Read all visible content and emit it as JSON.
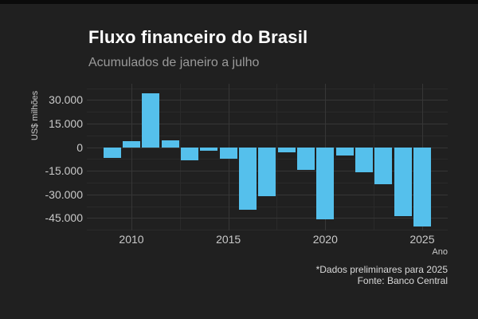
{
  "header": {
    "title": "Fluxo financeiro do Brasil",
    "subtitle": "Acumulados de janeiro a julho"
  },
  "footer": {
    "note": "*Dados preliminares para 2025",
    "source": "Fonte: Banco Central"
  },
  "colors": {
    "background": "#202020",
    "top_border": "#0b0b0b",
    "bar": "#55c0ec",
    "grid_major": "#363636",
    "grid_minor": "#2a2a2a",
    "title_text": "#ffffff",
    "subtitle_text": "#9a9a9a",
    "axis_text": "#c9c9c9",
    "caption_text": "#dadada"
  },
  "chart_data": {
    "type": "bar",
    "title": "Fluxo financeiro do Brasil",
    "subtitle": "Acumulados de janeiro a julho",
    "xlabel": "Ano",
    "ylabel": "US$ milhões",
    "categories": [
      2009,
      2010,
      2011,
      2012,
      2013,
      2014,
      2015,
      2016,
      2017,
      2018,
      2019,
      2020,
      2021,
      2022,
      2023,
      2024,
      2025
    ],
    "values": [
      -7000,
      4000,
      34200,
      4500,
      -8500,
      -2500,
      -7400,
      -39900,
      -31100,
      -3500,
      -14300,
      -45800,
      -5100,
      -15900,
      -23400,
      -43600,
      -50600
    ],
    "bar_color": "#55c0ec",
    "ylim": [
      -52900,
      40300
    ],
    "yticks_major": [
      30000,
      15000,
      0,
      -15000,
      -30000,
      -45000
    ],
    "ytick_labels": [
      "30.000",
      "15.000",
      "0",
      "-15.000",
      "-30.000",
      "-45.000"
    ],
    "yticks_minor": [
      37500,
      22500,
      7500,
      -7500,
      -22500,
      -37500,
      -52500
    ],
    "xticks_major": [
      2010,
      2015,
      2020,
      2025
    ],
    "xticks_minor": [
      2012.5,
      2017.5,
      2022.5
    ],
    "grid": true,
    "legend": false,
    "caption": [
      "*Dados preliminares para 2025",
      "Fonte: Banco Central"
    ]
  }
}
